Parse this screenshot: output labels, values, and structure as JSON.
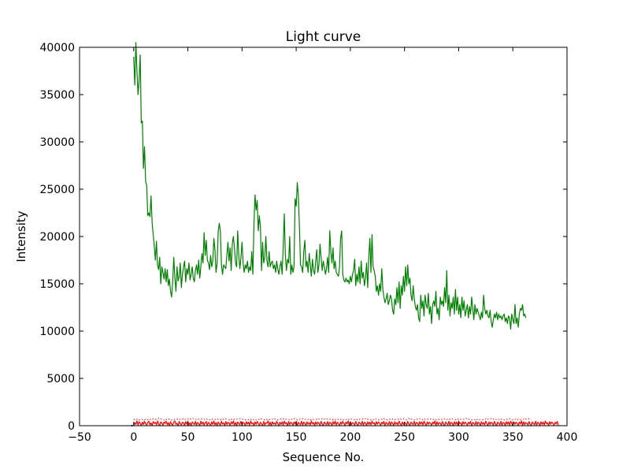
{
  "chart_data": {
    "type": "line",
    "title": "Light curve",
    "xlabel": "Sequence No.",
    "ylabel": "Intensity",
    "xlim": [
      -50,
      400
    ],
    "ylim": [
      0,
      40000
    ],
    "xticks": [
      -50,
      0,
      50,
      100,
      150,
      200,
      250,
      300,
      350,
      400
    ],
    "yticks": [
      0,
      5000,
      10000,
      15000,
      20000,
      25000,
      30000,
      35000,
      40000
    ],
    "grid": false,
    "legend": "none",
    "colors": {
      "signal": "#008000",
      "noise": "#ff0000",
      "marker": "#0000ff",
      "frame": "#000000",
      "background": "#ffffff"
    },
    "series": [
      {
        "style": "solid",
        "color": "#008000",
        "x_start": 0,
        "x_step": 1,
        "values": [
          39000,
          36000,
          40500,
          37500,
          35000,
          36500,
          39200,
          32000,
          32200,
          27200,
          29500,
          25800,
          25400,
          22200,
          22500,
          22100,
          24300,
          21500,
          20200,
          19000,
          17500,
          19500,
          17000,
          16500,
          17800,
          15000,
          16800,
          16200,
          15500,
          16600,
          15200,
          16500,
          14800,
          15500,
          14200,
          13600,
          15200,
          17800,
          15600,
          14200,
          16800,
          15300,
          15800,
          17200,
          14600,
          16000,
          16800,
          17400,
          15200,
          16600,
          16000,
          17200,
          15400,
          16000,
          16800,
          15600,
          15200,
          16400,
          17000,
          16000,
          17500,
          15600,
          16800,
          18200,
          17200,
          20400,
          18000,
          19600,
          17500,
          17200,
          16500,
          18000,
          16800,
          17400,
          19800,
          18600,
          16200,
          17200,
          20500,
          21400,
          20600,
          17000,
          16000,
          17000,
          16800,
          16600,
          18000,
          19400,
          17400,
          18800,
          16400,
          19200,
          20000,
          18800,
          17200,
          16800,
          20600,
          18000,
          16600,
          17800,
          19400,
          17200,
          16200,
          17000,
          16600,
          17400,
          16200,
          16800,
          16400,
          18400,
          16000,
          21200,
          24400,
          22800,
          23800,
          20600,
          22200,
          21000,
          16400,
          19400,
          17200,
          17800,
          20000,
          17400,
          16800,
          18400,
          16800,
          17200,
          17400,
          16600,
          17000,
          16200,
          17400,
          16600,
          16000,
          16800,
          17400,
          16000,
          18800,
          22400,
          18000,
          16400,
          17600,
          17200,
          20000,
          16000,
          17000,
          16200,
          16800,
          24000,
          23200,
          25700,
          24300,
          21000,
          17000,
          16800,
          16200,
          18400,
          19600,
          16800,
          17400,
          16200,
          18200,
          17000,
          15800,
          17600,
          16400,
          16000,
          17400,
          18600,
          16200,
          17000,
          19200,
          17800,
          16400,
          17400,
          16800,
          16000,
          16600,
          17800,
          16200,
          20600,
          18400,
          17200,
          18800,
          16600,
          17400,
          16200,
          16000,
          15800,
          16800,
          19800,
          20600,
          16000,
          15400,
          15200,
          15600,
          15200,
          15400,
          15000,
          15800,
          15200,
          16000,
          16400,
          17600,
          14800,
          16000,
          15200,
          16800,
          15000,
          17400,
          15600,
          16200,
          14800,
          15600,
          17200,
          14600,
          17800,
          19800,
          16200,
          20200,
          16800,
          16400,
          15800,
          14200,
          14800,
          13800,
          15000,
          14200,
          16600,
          14400,
          13600,
          13000,
          13400,
          14000,
          12800,
          13200,
          13800,
          13400,
          12200,
          11800,
          13400,
          12800,
          14600,
          13000,
          15200,
          12400,
          14800,
          13800,
          15800,
          14200,
          16800,
          14800,
          17000,
          15000,
          15600,
          13800,
          13200,
          14800,
          13400,
          12600,
          12200,
          12800,
          11400,
          11000,
          13800,
          12400,
          13200,
          11600,
          13800,
          12800,
          12400,
          14000,
          11800,
          12600,
          10800,
          12800,
          13200,
          12600,
          14200,
          11800,
          12400,
          11200,
          13600,
          12800,
          13200,
          12600,
          14600,
          13000,
          16400,
          12200,
          13800,
          11600,
          13000,
          12400,
          13600,
          11800,
          14400,
          12200,
          13600,
          11800,
          12800,
          11400,
          13600,
          12200,
          13200,
          11600,
          12200,
          12800,
          11400,
          12600,
          11800,
          13600,
          12400,
          11200,
          12800,
          11800,
          12400,
          12000,
          11600,
          11200,
          12000,
          11400,
          13800,
          12400,
          11800,
          12200,
          11600,
          11400,
          12200,
          11000,
          10400,
          11200,
          11800,
          11400,
          12000,
          11200,
          11800,
          11400,
          11600,
          11200,
          11600,
          11800,
          11000,
          11400,
          10800,
          11600,
          11400,
          10200,
          11800,
          11200,
          10800,
          12800,
          10800,
          11400,
          10400,
          11800,
          12400,
          12200,
          12800,
          11600,
          11800,
          11400
        ]
      },
      {
        "style": "solid",
        "color": "#ff0000",
        "x_start": 0,
        "x_step": 1,
        "values": [
          0,
          320,
          150,
          500,
          80,
          420,
          260,
          0,
          380,
          120,
          460,
          200,
          60,
          350,
          480,
          100,
          300,
          0,
          440,
          220,
          360,
          90,
          500,
          160,
          0,
          410,
          280,
          40,
          390,
          240,
          470,
          110,
          330,
          0,
          420,
          180,
          60,
          360,
          500,
          140,
          260,
          0,
          450,
          210,
          80,
          380,
          300,
          20,
          430,
          170,
          490,
          90,
          310,
          0,
          400,
          250,
          130,
          460,
          60,
          340,
          210,
          0,
          480,
          160,
          390,
          70,
          280,
          450,
          20,
          350,
          230,
          0,
          410,
          140,
          500,
          100,
          330,
          0,
          390,
          220,
          60,
          470,
          180,
          310,
          0,
          440,
          120,
          360,
          270,
          30,
          420,
          190,
          500,
          80,
          340,
          0,
          400,
          230,
          110,
          460,
          50,
          350,
          280,
          0,
          430,
          160,
          380,
          70,
          490,
          210,
          300,
          0,
          410,
          130,
          460,
          240,
          40,
          370,
          190,
          0,
          450,
          90,
          320,
          260,
          500,
          60,
          380,
          0,
          420,
          170,
          300,
          110,
          470,
          230,
          0,
          360,
          140,
          410,
          80,
          490,
          200,
          330,
          0,
          440,
          100,
          370,
          270,
          30,
          400,
          180,
          460,
          0,
          350,
          210,
          110,
          480,
          60,
          390,
          250,
          0,
          420,
          150,
          320,
          90,
          500,
          200,
          340,
          0,
          410,
          130,
          380,
          250,
          50,
          460,
          170,
          0,
          390,
          220,
          100,
          440,
          60,
          350,
          300,
          0,
          430,
          160,
          480,
          80,
          370,
          210,
          0,
          400,
          140,
          460,
          250,
          30,
          380,
          190,
          500,
          0,
          420,
          110,
          330,
          260,
          60,
          450,
          170,
          0,
          390,
          230,
          100,
          470,
          50,
          360,
          280,
          0,
          410,
          140,
          380,
          90,
          490,
          210,
          320,
          0,
          430,
          160,
          400,
          250,
          40,
          370,
          180,
          460,
          0,
          350,
          200,
          110,
          440,
          70,
          390,
          260,
          0,
          420,
          150,
          330,
          90,
          480,
          220,
          0,
          400,
          130,
          370,
          260,
          50,
          450,
          180,
          0,
          390,
          210,
          100,
          460,
          60,
          350,
          290,
          0,
          430,
          160,
          400,
          80,
          480,
          220,
          0,
          410,
          140,
          360,
          250,
          40,
          380,
          190,
          500,
          0,
          420,
          110,
          330,
          270,
          60,
          440,
          170,
          0,
          400,
          230,
          100,
          470,
          50,
          360,
          280,
          0,
          420,
          140,
          390,
          90,
          490,
          210,
          320,
          0,
          430,
          160,
          380,
          250,
          40,
          370,
          180,
          460,
          0,
          350,
          200,
          110,
          440,
          70,
          390,
          260,
          0,
          420,
          150,
          330,
          90,
          480,
          220,
          0,
          400,
          130,
          370,
          260,
          50,
          450,
          180,
          0,
          390,
          210,
          100,
          460,
          60,
          350,
          290,
          0,
          430,
          160,
          400,
          80,
          480,
          220,
          0,
          410,
          140,
          360,
          250,
          40,
          380,
          190,
          500,
          0,
          420,
          110,
          330,
          270,
          60,
          440,
          170,
          0,
          400,
          230,
          100,
          470,
          50,
          360,
          280,
          0,
          420,
          140,
          390,
          90,
          490,
          210,
          320,
          0,
          430,
          160,
          380,
          250,
          40,
          370,
          180,
          460,
          0
        ]
      },
      {
        "style": "dotted",
        "color": "#ff0000",
        "x_start": 0,
        "x_step": 1,
        "values": [
          600,
          700,
          760,
          650,
          720,
          580,
          690,
          750,
          640,
          710,
          600,
          730,
          680,
          620,
          760,
          650,
          700,
          590,
          740,
          660,
          710,
          600,
          690,
          770,
          630,
          720,
          650,
          700,
          580,
          740,
          670,
          610,
          760,
          640,
          710,
          590,
          690,
          730,
          620,
          700,
          660,
          750,
          600,
          720,
          640,
          690,
          770,
          610,
          710,
          650,
          740,
          590,
          700,
          680,
          620,
          760,
          640,
          710,
          600,
          730,
          670,
          690,
          620,
          750,
          650,
          700,
          590,
          720,
          660,
          740,
          610,
          690,
          770,
          630,
          710,
          650,
          700,
          590,
          740,
          670,
          620,
          760,
          640,
          700,
          600,
          730,
          680,
          690,
          610,
          750,
          650,
          720,
          590,
          700,
          660,
          740,
          620,
          690,
          760,
          630,
          710,
          650,
          700,
          600,
          730,
          670,
          620,
          750,
          640,
          710,
          590,
          690,
          770,
          610,
          720,
          650,
          700,
          600,
          740,
          660,
          690,
          620,
          760,
          640,
          710,
          590,
          730,
          680,
          700,
          610,
          750,
          650,
          720,
          600,
          690,
          660,
          740,
          620,
          700,
          770,
          630,
          710,
          650,
          690,
          590,
          740,
          670,
          610,
          760,
          640,
          700,
          600,
          730,
          680,
          690,
          620,
          750,
          650,
          720,
          590,
          700,
          660,
          740,
          610,
          690,
          770,
          630,
          710,
          650,
          700,
          600,
          730,
          670,
          620,
          760,
          640,
          710,
          590,
          690,
          730,
          620,
          700,
          660,
          750,
          600,
          720,
          640,
          690,
          770,
          610,
          710,
          650,
          740,
          590,
          700,
          680,
          620,
          760,
          640,
          710,
          600,
          730,
          670,
          690,
          620,
          750,
          650,
          700,
          590,
          720,
          660,
          740,
          610,
          690,
          770,
          630,
          710,
          650,
          700,
          590,
          740,
          670,
          620,
          760,
          640,
          700,
          600,
          730,
          680,
          690,
          610,
          750,
          650,
          720,
          590,
          700,
          660,
          740,
          620,
          690,
          760,
          630,
          710,
          650,
          700,
          600,
          730,
          670,
          620,
          750,
          640,
          710,
          590,
          690,
          770,
          610,
          720,
          650,
          700,
          600,
          740,
          660,
          690,
          620,
          760,
          640,
          710,
          590,
          730,
          680,
          700,
          610,
          750,
          650,
          720,
          600,
          690,
          660,
          740,
          620,
          700,
          770,
          630,
          710,
          650,
          690,
          590,
          740,
          670,
          610,
          760,
          640,
          700,
          600,
          730,
          680,
          690,
          620,
          750,
          650,
          720,
          590,
          700,
          660,
          740,
          610,
          690,
          770,
          630,
          710,
          650,
          700,
          600,
          730,
          670,
          620,
          760,
          640,
          710,
          590,
          690,
          730,
          620,
          700,
          660,
          750,
          600,
          720,
          640,
          690,
          770,
          610,
          710,
          650,
          740,
          590,
          700,
          680,
          620,
          760,
          640,
          710,
          600,
          730,
          670,
          690,
          620,
          750,
          650,
          700,
          590,
          720,
          660,
          740,
          610,
          690,
          770,
          630,
          710,
          650,
          700,
          590,
          740,
          670,
          620,
          760,
          640,
          700
        ]
      },
      {
        "style": "marker",
        "color": "#0000ff",
        "x": [
          -2,
          -1
        ],
        "y": [
          0,
          0
        ]
      }
    ]
  }
}
